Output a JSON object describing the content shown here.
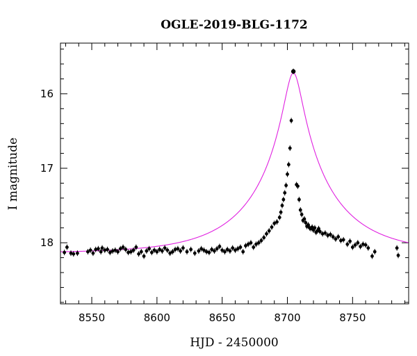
{
  "chart_data": {
    "type": "scatter",
    "title": "OGLE-2019-BLG-1172",
    "xlabel": "HJD - 2450000",
    "ylabel": "I magnitude",
    "xlim": [
      8526,
      8793
    ],
    "ylim": [
      18.82,
      15.32
    ],
    "y_inverted": true,
    "x_major_ticks": [
      8550,
      8600,
      8650,
      8700,
      8750
    ],
    "x_tick_labels": [
      "8550",
      "8600",
      "8650",
      "8700",
      "8750"
    ],
    "y_major_ticks": [
      16,
      17,
      18
    ],
    "y_tick_labels": [
      "16",
      "17",
      "18"
    ],
    "grid": false,
    "colors": {
      "points": "#000000",
      "model": "#e020e0",
      "frame": "#000000"
    },
    "model": {
      "name": "",
      "t0": 8704.6,
      "baseline": 18.14,
      "peak": 15.72,
      "scale_days": 1.0
    },
    "series": [
      {
        "points": [
          [
            8529,
            18.13
          ],
          [
            8531,
            18.06
          ],
          [
            8534,
            18.14
          ],
          [
            8536,
            18.15
          ],
          [
            8539,
            18.14
          ],
          [
            8547,
            18.12
          ],
          [
            8549,
            18.1
          ],
          [
            8551,
            18.14
          ],
          [
            8553,
            18.09
          ],
          [
            8555,
            18.08
          ],
          [
            8557,
            18.12
          ],
          [
            8558,
            18.07
          ],
          [
            8560,
            18.1
          ],
          [
            8562,
            18.09
          ],
          [
            8564,
            18.13
          ],
          [
            8566,
            18.11
          ],
          [
            8568,
            18.1
          ],
          [
            8570,
            18.12
          ],
          [
            8572,
            18.08
          ],
          [
            8574,
            18.06
          ],
          [
            8576,
            18.09
          ],
          [
            8578,
            18.13
          ],
          [
            8580,
            18.12
          ],
          [
            8582,
            18.1
          ],
          [
            8584,
            18.06
          ],
          [
            8586,
            18.15
          ],
          [
            8588,
            18.12
          ],
          [
            8590,
            18.18
          ],
          [
            8592,
            18.11
          ],
          [
            8594,
            18.08
          ],
          [
            8596,
            18.13
          ],
          [
            8598,
            18.1
          ],
          [
            8600,
            18.12
          ],
          [
            8602,
            18.09
          ],
          [
            8604,
            18.11
          ],
          [
            8606,
            18.07
          ],
          [
            8608,
            18.1
          ],
          [
            8610,
            18.14
          ],
          [
            8612,
            18.12
          ],
          [
            8614,
            18.09
          ],
          [
            8616,
            18.08
          ],
          [
            8618,
            18.11
          ],
          [
            8620,
            18.07
          ],
          [
            8623,
            18.12
          ],
          [
            8626,
            18.09
          ],
          [
            8629,
            18.14
          ],
          [
            8632,
            18.11
          ],
          [
            8634,
            18.08
          ],
          [
            8636,
            18.1
          ],
          [
            8638,
            18.12
          ],
          [
            8640,
            18.13
          ],
          [
            8642,
            18.09
          ],
          [
            8644,
            18.11
          ],
          [
            8646,
            18.08
          ],
          [
            8648,
            18.05
          ],
          [
            8650,
            18.1
          ],
          [
            8652,
            18.12
          ],
          [
            8654,
            18.09
          ],
          [
            8656,
            18.11
          ],
          [
            8658,
            18.07
          ],
          [
            8660,
            18.1
          ],
          [
            8662,
            18.08
          ],
          [
            8664,
            18.06
          ],
          [
            8666,
            18.12
          ],
          [
            8668,
            18.04
          ],
          [
            8670,
            18.02
          ],
          [
            8672,
            18.0
          ],
          [
            8674,
            18.06
          ],
          [
            8676,
            18.02
          ],
          [
            8678,
            18.0
          ],
          [
            8680,
            17.97
          ],
          [
            8682,
            17.93
          ],
          [
            8684,
            17.88
          ],
          [
            8686,
            17.84
          ],
          [
            8688,
            17.79
          ],
          [
            8690,
            17.74
          ],
          [
            8692,
            17.72
          ],
          [
            8694,
            17.66
          ],
          [
            8695,
            17.59
          ],
          [
            8696,
            17.5
          ],
          [
            8697,
            17.42
          ],
          [
            8698,
            17.33
          ],
          [
            8699,
            17.23
          ],
          [
            8700,
            17.08
          ],
          [
            8701,
            16.95
          ],
          [
            8702,
            16.73
          ],
          [
            8703,
            16.36
          ],
          [
            8704.6,
            15.7
          ],
          [
            8707,
            17.22
          ],
          [
            8708,
            17.24
          ],
          [
            8709,
            17.42
          ],
          [
            8710,
            17.56
          ],
          [
            8711,
            17.62
          ],
          [
            8712,
            17.7
          ],
          [
            8713,
            17.68
          ],
          [
            8714,
            17.73
          ],
          [
            8715,
            17.78
          ],
          [
            8716,
            17.76
          ],
          [
            8717,
            17.8
          ],
          [
            8718,
            17.81
          ],
          [
            8719,
            17.79
          ],
          [
            8720,
            17.83
          ],
          [
            8721,
            17.8
          ],
          [
            8722,
            17.86
          ],
          [
            8723,
            17.84
          ],
          [
            8724,
            17.81
          ],
          [
            8725,
            17.85
          ],
          [
            8727,
            17.88
          ],
          [
            8729,
            17.87
          ],
          [
            8731,
            17.9
          ],
          [
            8733,
            17.89
          ],
          [
            8735,
            17.92
          ],
          [
            8737,
            17.95
          ],
          [
            8739,
            17.92
          ],
          [
            8741,
            17.97
          ],
          [
            8743,
            17.96
          ],
          [
            8746,
            18.02
          ],
          [
            8748,
            17.98
          ],
          [
            8750,
            18.06
          ],
          [
            8752,
            18.03
          ],
          [
            8754,
            18.0
          ],
          [
            8756,
            18.05
          ],
          [
            8758,
            18.02
          ],
          [
            8760,
            18.03
          ],
          [
            8762,
            18.07
          ],
          [
            8765,
            18.18
          ],
          [
            8767,
            18.12
          ],
          [
            8784,
            18.07
          ],
          [
            8785,
            18.17
          ]
        ]
      }
    ]
  }
}
